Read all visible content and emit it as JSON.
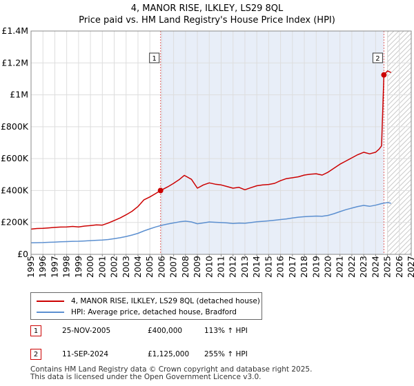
{
  "chart_data": {
    "type": "line",
    "title": "4, MANOR RISE, ILKLEY, LS29 8QL",
    "subtitle": "Price paid vs. HM Land Registry's House Price Index (HPI)",
    "xlabel": "",
    "ylabel": "",
    "xlim": [
      1995,
      2027
    ],
    "ylim": [
      0,
      1400000
    ],
    "grid": true,
    "x_ticks": [
      "1995",
      "1996",
      "1997",
      "1998",
      "1999",
      "2000",
      "2001",
      "2002",
      "2003",
      "2004",
      "2005",
      "2006",
      "2007",
      "2008",
      "2009",
      "2010",
      "2011",
      "2012",
      "2013",
      "2014",
      "2015",
      "2016",
      "2017",
      "2018",
      "2019",
      "2020",
      "2021",
      "2022",
      "2023",
      "2024",
      "2025",
      "2026",
      "2027"
    ],
    "y_ticks": [
      {
        "value": 0,
        "label": "£0"
      },
      {
        "value": 200000,
        "label": "£200K"
      },
      {
        "value": 400000,
        "label": "£400K"
      },
      {
        "value": 600000,
        "label": "£600K"
      },
      {
        "value": 800000,
        "label": "£800K"
      },
      {
        "value": 1000000,
        "label": "£1M"
      },
      {
        "value": 1200000,
        "label": "£1.2M"
      },
      {
        "value": 1400000,
        "label": "£1.4M"
      }
    ],
    "shaded_period": {
      "from": 2005.9,
      "to": 2024.7
    },
    "forecast_from": 2025.0,
    "series": [
      {
        "name": "4, MANOR RISE, ILKLEY, LS29 8QL (detached house)",
        "color": "#cc0000",
        "x": [
          1995.0,
          1995.5,
          1996.0,
          1996.5,
          1997.0,
          1997.5,
          1998.0,
          1998.5,
          1999.0,
          1999.5,
          2000.0,
          2000.5,
          2001.0,
          2001.5,
          2002.0,
          2002.5,
          2003.0,
          2003.5,
          2004.0,
          2004.5,
          2005.0,
          2005.5,
          2005.9,
          2006.5,
          2007.0,
          2007.5,
          2007.9,
          2008.5,
          2009.0,
          2009.5,
          2010.0,
          2010.5,
          2011.0,
          2011.5,
          2012.0,
          2012.5,
          2013.0,
          2013.5,
          2014.0,
          2014.5,
          2015.0,
          2015.5,
          2016.0,
          2016.5,
          2017.0,
          2017.5,
          2018.0,
          2018.5,
          2019.0,
          2019.5,
          2020.0,
          2020.5,
          2021.0,
          2021.5,
          2022.0,
          2022.5,
          2023.0,
          2023.5,
          2024.0,
          2024.3,
          2024.5,
          2024.7,
          2025.0,
          2025.3
        ],
        "values": [
          158000,
          162000,
          163000,
          166000,
          169000,
          171000,
          172000,
          175000,
          172000,
          177000,
          180000,
          185000,
          183000,
          196000,
          212000,
          228000,
          248000,
          270000,
          300000,
          342000,
          360000,
          382000,
          400000,
          423000,
          445000,
          470000,
          495000,
          470000,
          415000,
          435000,
          448000,
          440000,
          435000,
          425000,
          415000,
          420000,
          405000,
          418000,
          430000,
          435000,
          438000,
          445000,
          462000,
          475000,
          480000,
          486000,
          497000,
          502000,
          505000,
          497000,
          515000,
          540000,
          565000,
          585000,
          605000,
          625000,
          640000,
          630000,
          640000,
          660000,
          680000,
          1125000,
          1150000,
          1140000
        ]
      },
      {
        "name": "HPI: Average price, detached house, Bradford",
        "color": "#5b8fd0",
        "x": [
          1995.0,
          1995.5,
          1996.0,
          1996.5,
          1997.0,
          1997.5,
          1998.0,
          1998.5,
          1999.0,
          1999.5,
          2000.0,
          2000.5,
          2001.0,
          2001.5,
          2002.0,
          2002.5,
          2003.0,
          2003.5,
          2004.0,
          2004.5,
          2005.0,
          2005.5,
          2006.0,
          2006.5,
          2007.0,
          2007.5,
          2008.0,
          2008.5,
          2009.0,
          2009.5,
          2010.0,
          2010.5,
          2011.0,
          2011.5,
          2012.0,
          2012.5,
          2013.0,
          2013.5,
          2014.0,
          2014.5,
          2015.0,
          2015.5,
          2016.0,
          2016.5,
          2017.0,
          2017.5,
          2018.0,
          2018.5,
          2019.0,
          2019.5,
          2020.0,
          2020.5,
          2021.0,
          2021.5,
          2022.0,
          2022.5,
          2023.0,
          2023.5,
          2024.0,
          2024.5,
          2025.0,
          2025.3
        ],
        "values": [
          72000,
          73000,
          74000,
          75500,
          77000,
          78500,
          80000,
          81500,
          82000,
          84000,
          86000,
          88000,
          90000,
          93000,
          98000,
          104000,
          112000,
          121000,
          132000,
          147000,
          160000,
          172000,
          182000,
          190000,
          197000,
          204000,
          208000,
          203000,
          192000,
          197000,
          203000,
          201000,
          199000,
          197000,
          193000,
          196000,
          195000,
          199000,
          204000,
          207000,
          210000,
          214000,
          218000,
          222000,
          228000,
          233000,
          236000,
          238000,
          240000,
          239000,
          244000,
          255000,
          268000,
          280000,
          290000,
          300000,
          307000,
          301000,
          308000,
          318000,
          325000,
          320000
        ]
      }
    ],
    "annotations": [
      {
        "label": "1",
        "x": 2005.9,
        "y": 400000
      },
      {
        "label": "2",
        "x": 2024.7,
        "y": 1125000
      }
    ]
  },
  "legend": [
    {
      "label": "4, MANOR RISE, ILKLEY, LS29 8QL (detached house)",
      "color": "#cc0000"
    },
    {
      "label": "HPI: Average price, detached house, Bradford",
      "color": "#5b8fd0"
    }
  ],
  "transactions": [
    {
      "badge": "1",
      "date": "25-NOV-2005",
      "price": "£400,000",
      "hpi": "113% ↑ HPI"
    },
    {
      "badge": "2",
      "date": "11-SEP-2024",
      "price": "£1,125,000",
      "hpi": "255% ↑ HPI"
    }
  ],
  "footer": {
    "line1": "Contains HM Land Registry data © Crown copyright and database right 2025.",
    "line2": "This data is licensed under the Open Government Licence v3.0."
  },
  "colors": {
    "property": "#cc0000",
    "hpi": "#5b8fd0",
    "shade": "#e8eef8",
    "grid": "#dddddd",
    "vline": "#e06060"
  }
}
